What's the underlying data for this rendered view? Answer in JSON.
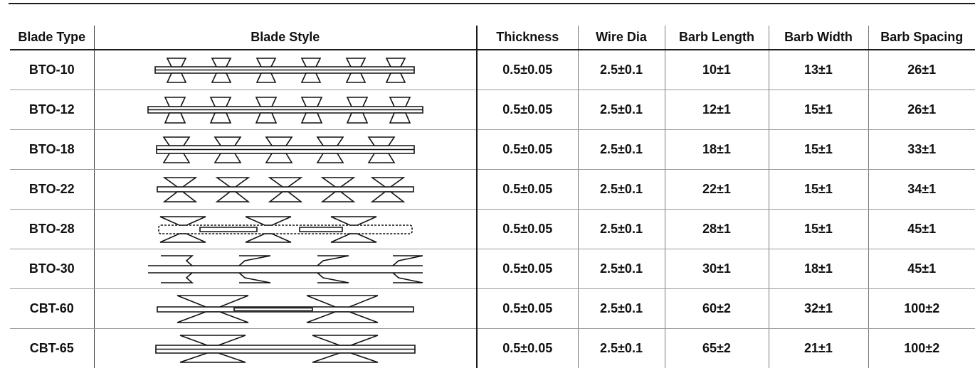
{
  "table": {
    "headers": {
      "blade_type": "Blade Type",
      "blade_style": "Blade Style",
      "thickness": "Thickness",
      "wire_dia": "Wire Dia",
      "barb_length": "Barb Length",
      "barb_width": "Barb Width",
      "barb_spacing": "Barb Spacing"
    },
    "rows": [
      {
        "blade_type": "BTO-10",
        "thickness": "0.5±0.05",
        "wire_dia": "2.5±0.1",
        "barb_length": "10±1",
        "barb_width": "13±1",
        "barb_spacing": "26±1"
      },
      {
        "blade_type": "BTO-12",
        "thickness": "0.5±0.05",
        "wire_dia": "2.5±0.1",
        "barb_length": "12±1",
        "barb_width": "15±1",
        "barb_spacing": "26±1"
      },
      {
        "blade_type": "BTO-18",
        "thickness": "0.5±0.05",
        "wire_dia": "2.5±0.1",
        "barb_length": "18±1",
        "barb_width": "15±1",
        "barb_spacing": "33±1"
      },
      {
        "blade_type": "BTO-22",
        "thickness": "0.5±0.05",
        "wire_dia": "2.5±0.1",
        "barb_length": "22±1",
        "barb_width": "15±1",
        "barb_spacing": "34±1"
      },
      {
        "blade_type": "BTO-28",
        "thickness": "0.5±0.05",
        "wire_dia": "2.5±0.1",
        "barb_length": "28±1",
        "barb_width": "15±1",
        "barb_spacing": "45±1"
      },
      {
        "blade_type": "BTO-30",
        "thickness": "0.5±0.05",
        "wire_dia": "2.5±0.1",
        "barb_length": "30±1",
        "barb_width": "18±1",
        "barb_spacing": "45±1"
      },
      {
        "blade_type": "CBT-60",
        "thickness": "0.5±0.05",
        "wire_dia": "2.5±0.1",
        "barb_length": "60±2",
        "barb_width": "32±1",
        "barb_spacing": "100±2"
      },
      {
        "blade_type": "CBT-65",
        "thickness": "0.5±0.05",
        "wire_dia": "2.5±0.1",
        "barb_length": "65±2",
        "barb_width": "21±1",
        "barb_spacing": "100±2"
      }
    ]
  }
}
